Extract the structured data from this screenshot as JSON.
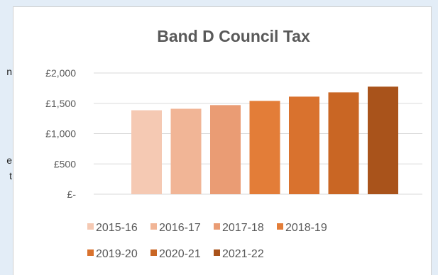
{
  "side_text": {
    "line_1": "n",
    "line_2": "e",
    "line_3": "t"
  },
  "colors": {
    "page_background": "#e3edf7",
    "card_background": "#ffffff",
    "gridline": "#d9d9d9",
    "text": "#595959"
  },
  "chart_data": {
    "type": "bar",
    "title": "Band D Council Tax",
    "xlabel": "",
    "ylabel": "",
    "categories": [
      "2015-16",
      "2016-17",
      "2017-18",
      "2018-19",
      "2019-20",
      "2020-21",
      "2021-22"
    ],
    "values": [
      1385,
      1410,
      1470,
      1540,
      1610,
      1680,
      1775
    ],
    "bar_colors": [
      "#f5c9b3",
      "#f1b596",
      "#ea9c74",
      "#e37d38",
      "#d9722e",
      "#c96624",
      "#a9531b"
    ],
    "ylim": [
      0,
      2000
    ],
    "yticks": [
      0,
      500,
      1000,
      1500,
      2000
    ],
    "ytick_labels": [
      "£-",
      "£500",
      "£1,000",
      "£1,500",
      "£2,000"
    ],
    "grid": true,
    "legend_position": "bottom"
  }
}
